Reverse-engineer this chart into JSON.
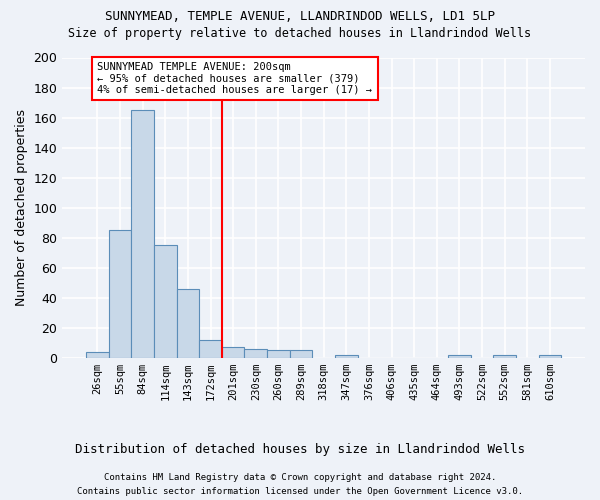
{
  "title1": "SUNNYMEAD, TEMPLE AVENUE, LLANDRINDOD WELLS, LD1 5LP",
  "title2": "Size of property relative to detached houses in Llandrindod Wells",
  "xlabel": "Distribution of detached houses by size in Llandrindod Wells",
  "ylabel": "Number of detached properties",
  "footer1": "Contains HM Land Registry data © Crown copyright and database right 2024.",
  "footer2": "Contains public sector information licensed under the Open Government Licence v3.0.",
  "bin_labels": [
    "26sqm",
    "55sqm",
    "84sqm",
    "114sqm",
    "143sqm",
    "172sqm",
    "201sqm",
    "230sqm",
    "260sqm",
    "289sqm",
    "318sqm",
    "347sqm",
    "376sqm",
    "406sqm",
    "435sqm",
    "464sqm",
    "493sqm",
    "522sqm",
    "552sqm",
    "581sqm",
    "610sqm"
  ],
  "bar_values": [
    4,
    85,
    165,
    75,
    46,
    12,
    7,
    6,
    5,
    5,
    0,
    2,
    0,
    0,
    0,
    0,
    2,
    0,
    2,
    0,
    2
  ],
  "bar_color": "#c8d8e8",
  "bar_edge_color": "#5b8db8",
  "annotation_text": "SUNNYMEAD TEMPLE AVENUE: 200sqm\n← 95% of detached houses are smaller (379)\n4% of semi-detached houses are larger (17) →",
  "annotation_box_color": "white",
  "annotation_box_edge": "red",
  "vline_color": "red",
  "ylim": [
    0,
    200
  ],
  "yticks": [
    0,
    20,
    40,
    60,
    80,
    100,
    120,
    140,
    160,
    180,
    200
  ],
  "background_color": "#eef2f8",
  "grid_color": "white",
  "vline_index": 6
}
